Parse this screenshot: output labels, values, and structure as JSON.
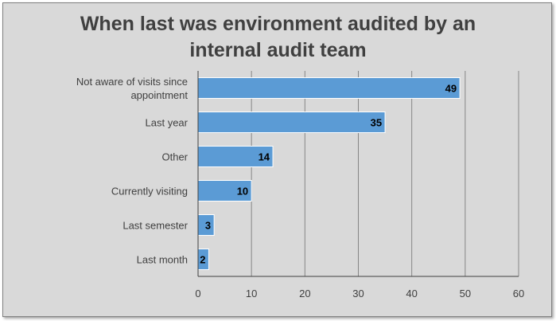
{
  "chart_data": {
    "type": "bar",
    "orientation": "horizontal",
    "title_lines": [
      "When last was environment audited by an",
      "internal audit team"
    ],
    "categories": [
      [
        "Not aware of visits since",
        "appointment"
      ],
      [
        "Last year"
      ],
      [
        "Other"
      ],
      [
        "Currently visiting"
      ],
      [
        "Last semester"
      ],
      [
        "Last month"
      ]
    ],
    "values": [
      49,
      35,
      14,
      10,
      3,
      2
    ],
    "xlim": [
      0,
      60
    ],
    "xticks": [
      0,
      10,
      20,
      30,
      40,
      50,
      60
    ],
    "grid": true,
    "legend": "none",
    "bar_color": "#5b9bd5",
    "data_labels": true
  }
}
